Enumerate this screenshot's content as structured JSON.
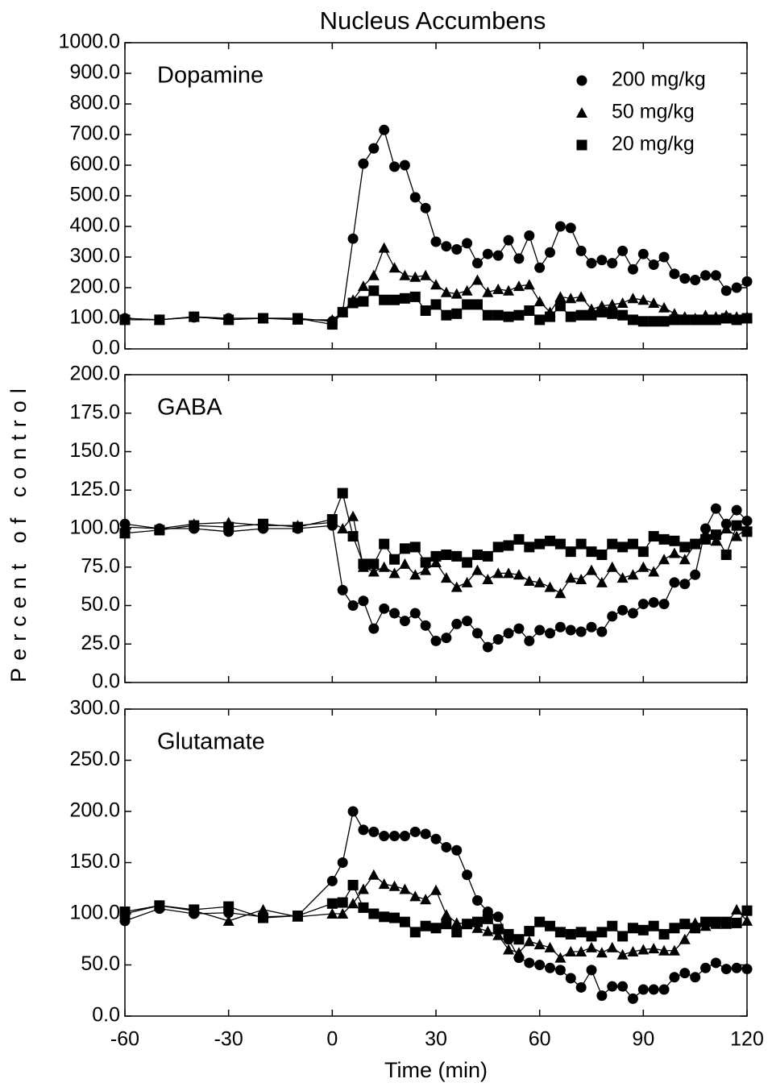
{
  "title": "Nucleus Accumbens",
  "y_label": "Percent of control",
  "x_label": "Time (min)",
  "chart_data": [
    {
      "type": "line",
      "annotation": "Dopamine",
      "legend": "upper right",
      "xtick_labels": false,
      "x": [
        -60,
        -50,
        -40,
        -30,
        -20,
        -10,
        0,
        3,
        6,
        9,
        12,
        15,
        18,
        21,
        24,
        27,
        30,
        33,
        36,
        39,
        42,
        45,
        48,
        51,
        54,
        57,
        60,
        63,
        66,
        69,
        72,
        75,
        78,
        81,
        84,
        87,
        90,
        93,
        96,
        99,
        102,
        105,
        108,
        111,
        114,
        117,
        120
      ],
      "xlim": [
        -60,
        120
      ],
      "xticks": [
        -60,
        -30,
        0,
        30,
        60,
        90,
        120
      ],
      "ylim": [
        0,
        1000
      ],
      "yticks": [
        {
          "value": 0,
          "label": "0.0"
        },
        {
          "value": 100,
          "label": "100.0"
        },
        {
          "value": 200,
          "label": "200.0"
        },
        {
          "value": 300,
          "label": "300.0"
        },
        {
          "value": 400,
          "label": "400.0"
        },
        {
          "value": 500,
          "label": "500.0"
        },
        {
          "value": 600,
          "label": "600.0"
        },
        {
          "value": 700,
          "label": "700.0"
        },
        {
          "value": 800,
          "label": "800.0"
        },
        {
          "value": 900,
          "label": "900.0"
        },
        {
          "value": 1000,
          "label": "1000.0"
        }
      ],
      "series": [
        {
          "name": "200 mg/kg",
          "color": "#000000",
          "marker": "circle",
          "values": [
            100,
            95,
            103,
            100,
            100,
            100,
            90,
            120,
            360,
            605,
            655,
            715,
            595,
            600,
            495,
            460,
            350,
            335,
            325,
            345,
            280,
            310,
            305,
            355,
            295,
            370,
            265,
            315,
            400,
            395,
            320,
            280,
            290,
            280,
            320,
            260,
            310,
            275,
            300,
            245,
            230,
            225,
            240,
            240,
            190,
            200,
            220
          ]
        },
        {
          "name": "50 mg/kg",
          "color": "#000000",
          "marker": "triangle",
          "values": [
            100,
            95,
            105,
            100,
            100,
            95,
            95,
            120,
            160,
            205,
            240,
            330,
            265,
            240,
            235,
            240,
            210,
            185,
            180,
            190,
            225,
            185,
            195,
            190,
            205,
            210,
            155,
            120,
            170,
            165,
            170,
            130,
            140,
            145,
            150,
            165,
            160,
            150,
            135,
            115,
            105,
            100,
            110,
            105,
            110,
            105,
            105
          ]
        },
        {
          "name": "20 mg/kg",
          "color": "#000000",
          "marker": "square",
          "values": [
            95,
            95,
            105,
            95,
            100,
            100,
            80,
            120,
            150,
            155,
            190,
            160,
            160,
            165,
            170,
            125,
            145,
            110,
            115,
            145,
            145,
            110,
            110,
            105,
            110,
            125,
            95,
            105,
            140,
            105,
            110,
            110,
            120,
            115,
            110,
            95,
            90,
            90,
            90,
            95,
            95,
            95,
            95,
            95,
            100,
            95,
            100
          ]
        }
      ]
    },
    {
      "type": "line",
      "annotation": "GABA",
      "xtick_labels": false,
      "x": [
        -60,
        -50,
        -40,
        -30,
        -20,
        -10,
        0,
        3,
        6,
        9,
        12,
        15,
        18,
        21,
        24,
        27,
        30,
        33,
        36,
        39,
        42,
        45,
        48,
        51,
        54,
        57,
        60,
        63,
        66,
        69,
        72,
        75,
        78,
        81,
        84,
        87,
        90,
        93,
        96,
        99,
        102,
        105,
        108,
        111,
        114,
        117,
        120
      ],
      "xlim": [
        -60,
        120
      ],
      "xticks": [
        -60,
        -30,
        0,
        30,
        60,
        90,
        120
      ],
      "ylim": [
        0,
        200
      ],
      "yticks": [
        {
          "value": 0,
          "label": "0.0"
        },
        {
          "value": 25,
          "label": "25.0"
        },
        {
          "value": 50,
          "label": "50.0"
        },
        {
          "value": 75,
          "label": "75.0"
        },
        {
          "value": 100,
          "label": "100.0"
        },
        {
          "value": 125,
          "label": "125.0"
        },
        {
          "value": 150,
          "label": "150.0"
        },
        {
          "value": 175,
          "label": "175.0"
        },
        {
          "value": 200,
          "label": "200.0"
        }
      ],
      "series": [
        {
          "color": "#000000",
          "marker": "circle",
          "values": [
            103,
            100,
            100,
            98,
            100,
            100,
            102,
            60,
            50,
            53,
            35,
            48,
            45,
            40,
            45,
            37,
            27,
            29,
            38,
            40,
            32,
            23,
            28,
            32,
            35,
            27,
            34,
            32,
            36,
            34,
            33,
            36,
            33,
            43,
            47,
            45,
            51,
            52,
            51,
            65,
            64,
            70,
            100,
            113,
            103,
            112,
            105
          ]
        },
        {
          "color": "#000000",
          "marker": "triangle",
          "values": [
            101,
            100,
            103,
            104,
            102,
            102,
            104,
            100,
            108,
            75,
            72,
            75,
            71,
            77,
            70,
            73,
            78,
            68,
            62,
            65,
            73,
            67,
            71,
            71,
            70,
            66,
            65,
            62,
            58,
            68,
            67,
            73,
            65,
            75,
            68,
            70,
            75,
            72,
            80,
            84,
            80,
            90,
            97,
            92,
            100,
            95,
            100
          ]
        },
        {
          "color": "#000000",
          "marker": "square",
          "values": [
            97,
            99,
            102,
            101,
            103,
            101,
            106,
            123,
            95,
            77,
            77,
            90,
            80,
            87,
            88,
            78,
            82,
            83,
            82,
            78,
            83,
            82,
            88,
            89,
            93,
            88,
            90,
            92,
            90,
            85,
            90,
            85,
            83,
            90,
            88,
            90,
            85,
            95,
            93,
            92,
            88,
            90,
            93,
            96,
            83,
            102,
            98
          ]
        }
      ]
    },
    {
      "type": "line",
      "annotation": "Glutamate",
      "xtick_labels": true,
      "x": [
        -60,
        -50,
        -40,
        -30,
        -20,
        -10,
        0,
        3,
        6,
        9,
        12,
        15,
        18,
        21,
        24,
        27,
        30,
        33,
        36,
        39,
        42,
        45,
        48,
        51,
        54,
        57,
        60,
        63,
        66,
        69,
        72,
        75,
        78,
        81,
        84,
        87,
        90,
        93,
        96,
        99,
        102,
        105,
        108,
        111,
        114,
        117,
        120
      ],
      "xlim": [
        -60,
        120
      ],
      "xticks": [
        -60,
        -30,
        0,
        30,
        60,
        90,
        120
      ],
      "ylim": [
        0,
        300
      ],
      "yticks": [
        {
          "value": 0,
          "label": "0.0"
        },
        {
          "value": 50,
          "label": "50.0"
        },
        {
          "value": 100,
          "label": "100.0"
        },
        {
          "value": 150,
          "label": "150.0"
        },
        {
          "value": 200,
          "label": "200.0"
        },
        {
          "value": 250,
          "label": "250.0"
        },
        {
          "value": 300,
          "label": "300.0"
        }
      ],
      "series": [
        {
          "color": "#000000",
          "marker": "circle",
          "values": [
            93,
            105,
            100,
            101,
            97,
            98,
            132,
            150,
            200,
            182,
            180,
            176,
            176,
            176,
            180,
            178,
            173,
            165,
            162,
            138,
            113,
            102,
            97,
            75,
            57,
            52,
            50,
            47,
            45,
            37,
            28,
            45,
            20,
            29,
            29,
            17,
            26,
            26,
            26,
            38,
            42,
            38,
            47,
            52,
            46,
            47,
            46
          ]
        },
        {
          "color": "#000000",
          "marker": "triangle",
          "values": [
            100,
            108,
            103,
            93,
            104,
            97,
            100,
            100,
            110,
            124,
            138,
            129,
            127,
            124,
            117,
            114,
            123,
            99,
            91,
            90,
            86,
            83,
            79,
            65,
            62,
            73,
            70,
            67,
            57,
            63,
            63,
            67,
            62,
            67,
            60,
            63,
            65,
            66,
            64,
            64,
            75,
            91,
            88,
            90,
            90,
            104,
            93
          ]
        },
        {
          "color": "#000000",
          "marker": "square",
          "values": [
            102,
            108,
            104,
            107,
            96,
            98,
            110,
            111,
            128,
            106,
            100,
            97,
            96,
            92,
            82,
            88,
            86,
            90,
            82,
            90,
            92,
            95,
            85,
            80,
            75,
            83,
            92,
            88,
            82,
            80,
            82,
            78,
            82,
            88,
            78,
            86,
            84,
            88,
            80,
            86,
            90,
            86,
            92,
            92,
            92,
            91,
            103
          ]
        }
      ]
    }
  ]
}
